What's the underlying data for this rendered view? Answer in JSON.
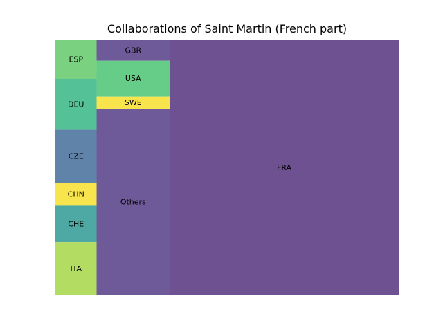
{
  "chart_data": {
    "type": "treemap",
    "title": "Collaborations of Saint Martin (French part)",
    "grid": false,
    "legend": "none",
    "items": [
      {
        "label": "ESP",
        "value": 0.51,
        "color": "#7ad17f"
      },
      {
        "label": "DEU",
        "value": 0.67,
        "color": "#55c196"
      },
      {
        "label": "CZE",
        "value": 0.7,
        "color": "#6083aa"
      },
      {
        "label": "CHN",
        "value": 0.3,
        "color": "#f8e44c"
      },
      {
        "label": "CHE",
        "value": 0.48,
        "color": "#4ea8a3"
      },
      {
        "label": "ITA",
        "value": 0.7,
        "color": "#b2dd62"
      },
      {
        "label": "GBR",
        "value": 0.48,
        "color": "#6e5a98"
      },
      {
        "label": "USA",
        "value": 0.84,
        "color": "#66cd89"
      },
      {
        "label": "SWE",
        "value": 0.28,
        "color": "#f8e44c"
      },
      {
        "label": "Others",
        "value": 4.36,
        "color": "#6e5a98"
      },
      {
        "label": "FRA",
        "value": 18.68,
        "color": "#6e5190"
      }
    ]
  }
}
